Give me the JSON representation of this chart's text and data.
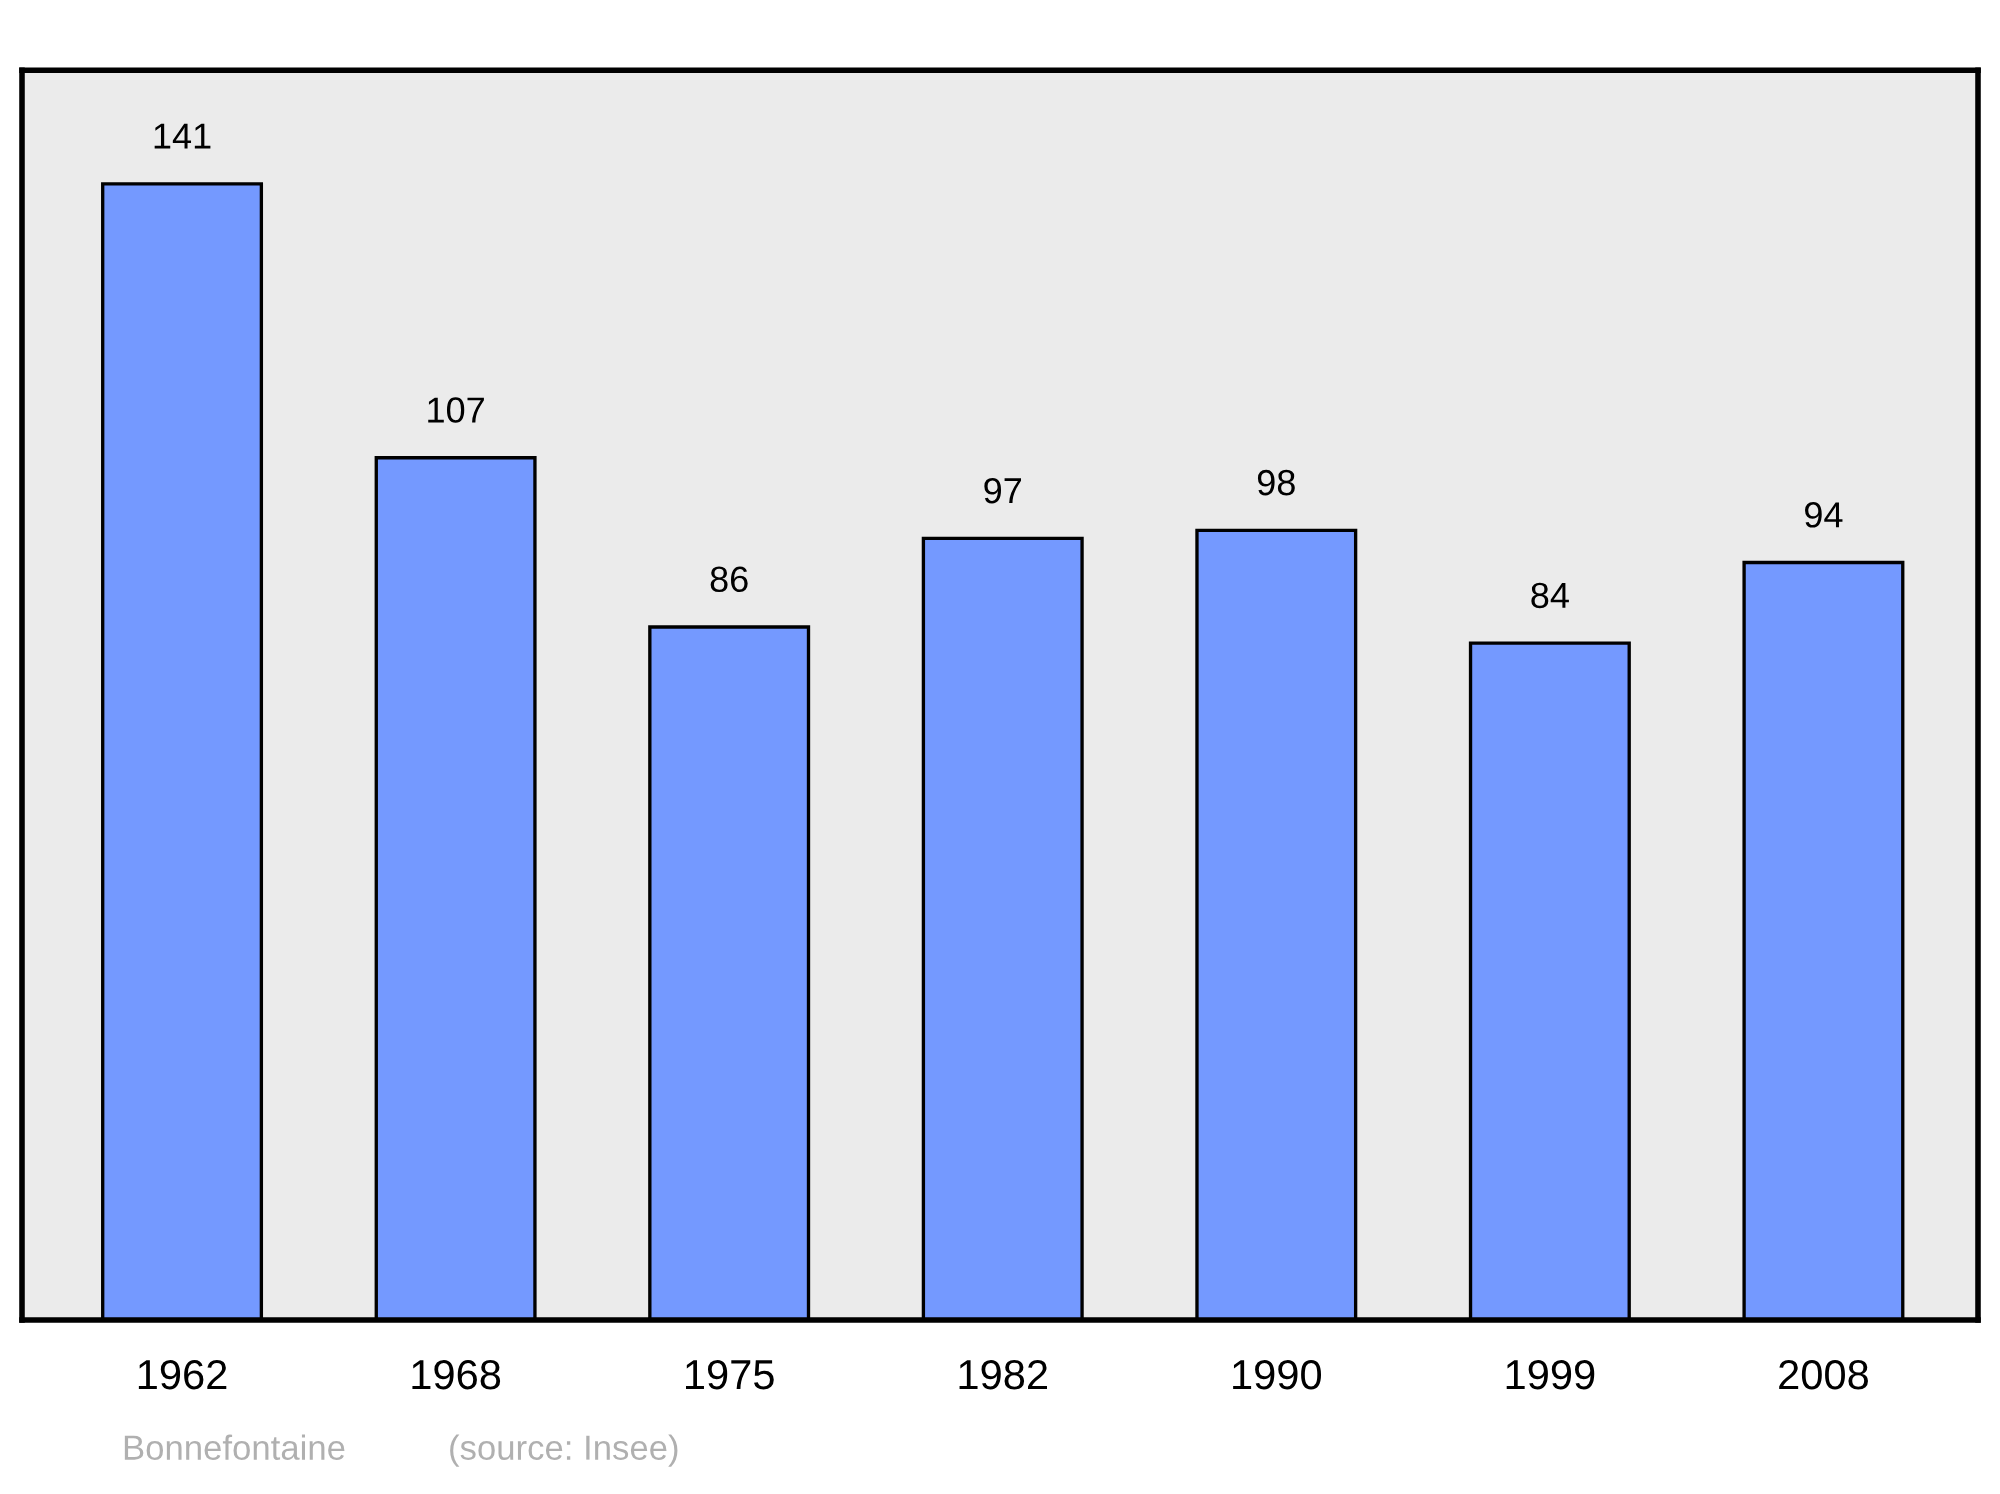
{
  "chart_data": {
    "type": "bar",
    "categories": [
      "1962",
      "1968",
      "1975",
      "1982",
      "1990",
      "1999",
      "2008"
    ],
    "values": [
      141,
      107,
      86,
      97,
      98,
      84,
      94
    ],
    "color": "#7499ff",
    "data_labels": true,
    "grid": false,
    "annotations": [
      "Bonnefontaine",
      "(source: Insee)"
    ]
  }
}
